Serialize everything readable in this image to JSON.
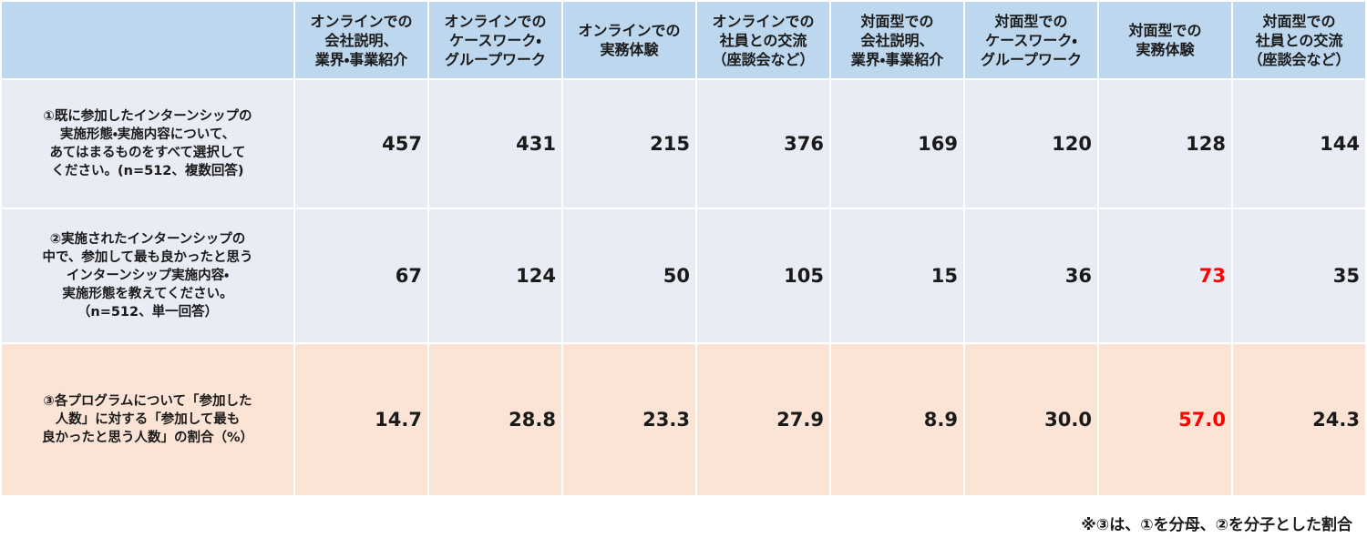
{
  "table": {
    "header": [
      "",
      "オンラインでの\n会社説明、\n業界・事業紹介",
      "オンラインでの\nケースワーク・\nグループワーク",
      "オンラインでの\n実務体験",
      "オンラインでの\n社員との交流\n（座談会など）",
      "対面型での\n会社説明、\n業界・事業紹介",
      "対面型での\nケースワーク・\nグループワーク",
      "対面型での\n実務体験",
      "対面型での\n社員との交流\n（座談会など）"
    ],
    "rows": [
      [
        "①既に参加したインターンシップの\n実施形態・実施内容について、\nあてはまるものをすべて選択して\nください。(n=512、複数回答)",
        "457",
        "431",
        "215",
        "376",
        "169",
        "120",
        "128",
        "144"
      ],
      [
        "②実施されたインターンシップの\n中で、参加して最も良かったと思う\nインターンシップ実施内容・\n実施形態を教えてください。\n（n=512、単一回答）",
        "67",
        "124",
        "50",
        "105",
        "15",
        "36",
        {
          "text": "73",
          "color": "#ff0000"
        },
        "35"
      ],
      [
        "③各プログラムについて「参加した\n人数」に対する「参加して最も\n良かったと思う人数」の割合（%）",
        "14.7",
        "28.8",
        "23.3",
        "27.9",
        "8.9",
        "30.0",
        {
          "text": "57.0",
          "color": "#ff0000"
        },
        "24.3"
      ]
    ]
  },
  "footnote": "※③は、①を分母、②を分子とした割合"
}
